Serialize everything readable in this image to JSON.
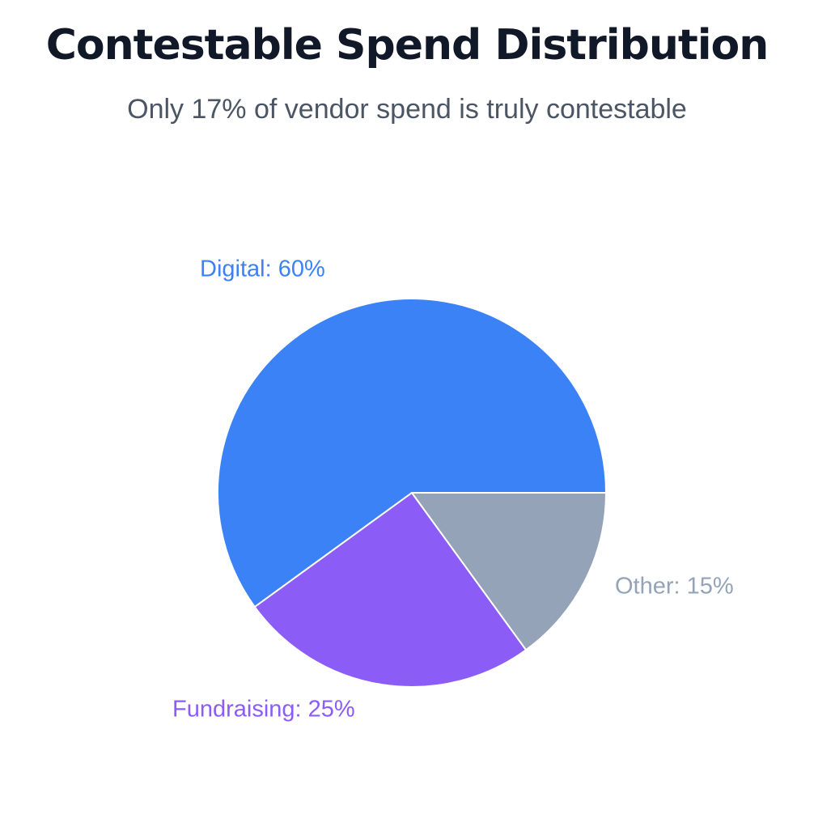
{
  "title": "Contestable Spend Distribution",
  "subtitle": "Only 17% of vendor spend is truly contestable",
  "chart_data": {
    "type": "pie",
    "categories": [
      "Digital",
      "Fundraising",
      "Other"
    ],
    "values": [
      60,
      25,
      15
    ],
    "unit": "%",
    "labels": [
      "Digital: 60%",
      "Fundraising: 25%",
      "Other: 15%"
    ],
    "colors": [
      "#3b82f6",
      "#8b5cf6",
      "#94a3b8"
    ],
    "slice_border_color": "#ffffff",
    "start_direction": "east",
    "direction": "counterclockwise",
    "legend": "none"
  }
}
